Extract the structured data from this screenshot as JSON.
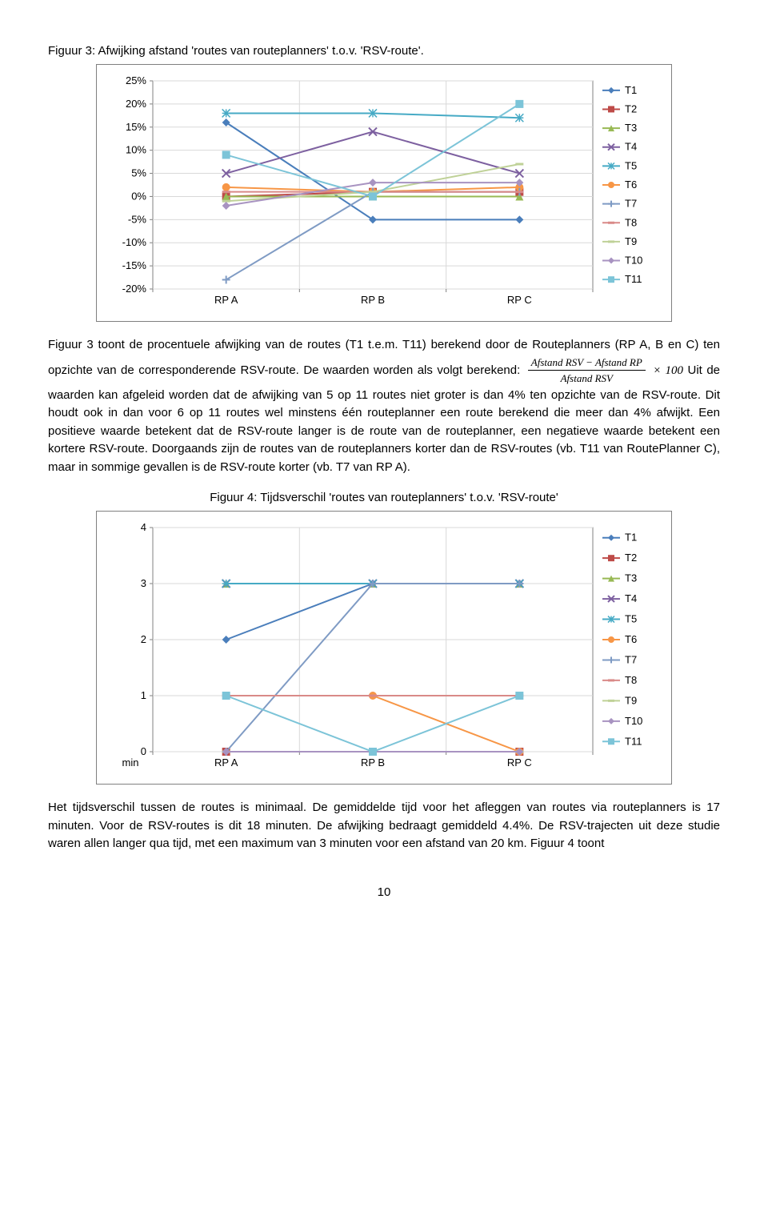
{
  "page_number": "10",
  "figure3": {
    "title": "Figuur 3: Afwijking afstand 'routes van routeplanners' t.o.v. 'RSV-route'.",
    "categories": [
      "RP A",
      "RP B",
      "RP C"
    ],
    "y_ticks": [
      "25%",
      "20%",
      "15%",
      "10%",
      "5%",
      "0%",
      "-5%",
      "-10%",
      "-15%",
      "-20%"
    ],
    "y_min": -20,
    "y_max": 25,
    "y_step": 5,
    "axis_color": "#808080",
    "grid_color": "#d9d9d9",
    "label_fontsize": 13,
    "tick_fontsize": 13,
    "series": [
      {
        "name": "T1",
        "color": "#4a7ebb",
        "marker": "diamond",
        "values": [
          16,
          -5,
          -5
        ]
      },
      {
        "name": "T2",
        "color": "#be4b48",
        "marker": "square",
        "values": [
          0,
          1,
          1
        ]
      },
      {
        "name": "T3",
        "color": "#98b954",
        "marker": "triangle",
        "values": [
          0,
          0,
          0
        ]
      },
      {
        "name": "T4",
        "color": "#7d60a0",
        "marker": "x",
        "values": [
          5,
          14,
          5
        ]
      },
      {
        "name": "T5",
        "color": "#46aac5",
        "marker": "asterisk",
        "values": [
          18,
          18,
          17
        ]
      },
      {
        "name": "T6",
        "color": "#f79646",
        "marker": "circle",
        "values": [
          2,
          1,
          2
        ]
      },
      {
        "name": "T7",
        "color": "#7f9bc4",
        "marker": "plus",
        "values": [
          -18,
          1,
          1
        ]
      },
      {
        "name": "T8",
        "color": "#d98a88",
        "marker": "dash",
        "values": [
          1,
          1,
          1
        ]
      },
      {
        "name": "T9",
        "color": "#bfd197",
        "marker": "dash",
        "values": [
          -1,
          1,
          7
        ]
      },
      {
        "name": "T10",
        "color": "#a893c1",
        "marker": "diamond",
        "values": [
          -2,
          3,
          3
        ]
      },
      {
        "name": "T11",
        "color": "#7cc4d8",
        "marker": "square",
        "values": [
          9,
          0,
          20
        ]
      }
    ]
  },
  "paragraph1": "Figuur 3 toont de procentuele afwijking van de routes (T1 t.e.m. T11) berekend door de Routeplanners (RP A, B en C) ten opzichte van de corresponderende RSV-route. De waarden worden als volgt berekend:",
  "formula_num": "Afstand RSV − Afstand RP",
  "formula_den": "Afstand RSV",
  "formula_tail": "× 100",
  "paragraph1b": "Uit de waarden kan afgeleid worden dat de afwijking van 5 op 11 routes niet groter is dan 4% ten opzichte van de RSV-route. Dit houdt ook in dan voor 6 op 11 routes wel minstens één routeplanner een route berekend die meer dan 4% afwijkt. Een positieve waarde betekent dat de RSV-route langer is de route van de routeplanner, een negatieve waarde betekent een kortere RSV-route. Doorgaands zijn de routes van de routeplanners korter dan de RSV-routes (vb. T11 van RoutePlanner C), maar in sommige gevallen is de RSV-route korter (vb. T7 van RP A).",
  "figure4": {
    "title": "Figuur 4: Tijdsverschil 'routes van routeplanners' t.o.v. 'RSV-route'",
    "categories": [
      "RP A",
      "RP B",
      "RP C"
    ],
    "y_ticks": [
      "4",
      "3",
      "2",
      "1",
      "0"
    ],
    "y_min": 0,
    "y_max": 4,
    "y_step": 1,
    "y_unit": "min",
    "axis_color": "#808080",
    "grid_color": "#d9d9d9",
    "label_fontsize": 13,
    "tick_fontsize": 13,
    "series": [
      {
        "name": "T1",
        "color": "#4a7ebb",
        "marker": "diamond",
        "values": [
          2,
          3,
          3
        ]
      },
      {
        "name": "T2",
        "color": "#be4b48",
        "marker": "square",
        "values": [
          0,
          0,
          0
        ]
      },
      {
        "name": "T3",
        "color": "#98b954",
        "marker": "triangle",
        "values": [
          3,
          3,
          3
        ]
      },
      {
        "name": "T4",
        "color": "#7d60a0",
        "marker": "x",
        "values": [
          3,
          3,
          3
        ]
      },
      {
        "name": "T5",
        "color": "#46aac5",
        "marker": "asterisk",
        "values": [
          3,
          3,
          3
        ]
      },
      {
        "name": "T6",
        "color": "#f79646",
        "marker": "circle",
        "values": [
          1,
          1,
          0
        ]
      },
      {
        "name": "T7",
        "color": "#7f9bc4",
        "marker": "plus",
        "values": [
          0,
          3,
          3
        ]
      },
      {
        "name": "T8",
        "color": "#d98a88",
        "marker": "dash",
        "values": [
          1,
          1,
          1
        ]
      },
      {
        "name": "T9",
        "color": "#bfd197",
        "marker": "dash",
        "values": [
          0,
          0,
          0
        ]
      },
      {
        "name": "T10",
        "color": "#a893c1",
        "marker": "diamond",
        "values": [
          0,
          0,
          0
        ]
      },
      {
        "name": "T11",
        "color": "#7cc4d8",
        "marker": "square",
        "values": [
          1,
          0,
          1
        ]
      }
    ]
  },
  "paragraph2": "Het tijdsverschil tussen de routes is minimaal. De gemiddelde tijd voor het afleggen van routes via routeplanners is 17 minuten. Voor de RSV-routes is dit 18 minuten. De afwijking bedraagt gemiddeld 4.4%. De RSV-trajecten uit deze studie waren allen langer qua tijd, met een maximum van 3 minuten voor een afstand van 20 km. Figuur 4 toont"
}
